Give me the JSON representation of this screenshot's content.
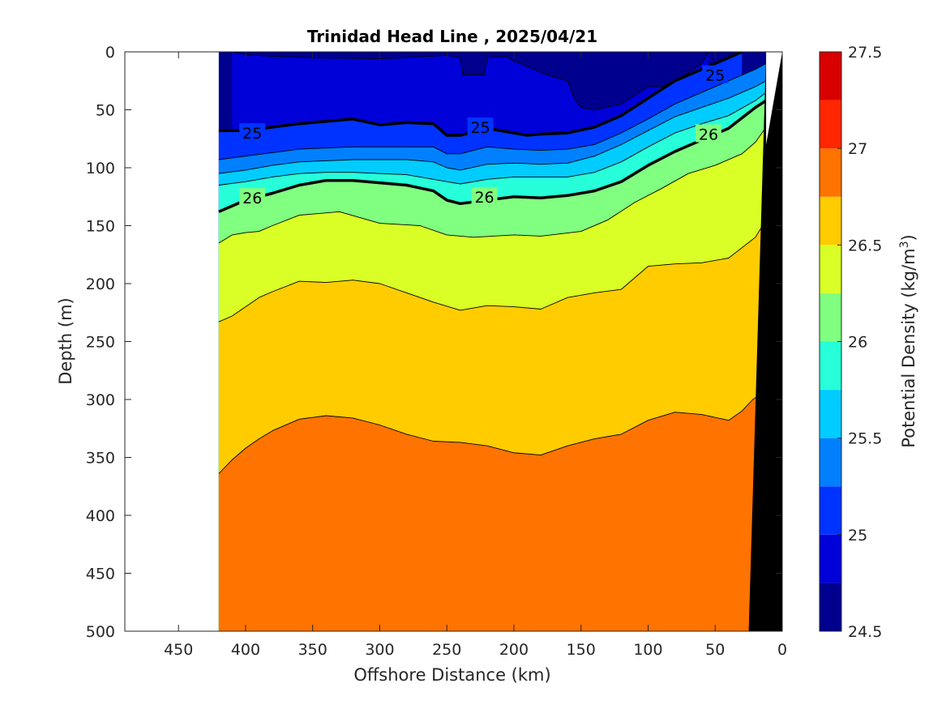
{
  "chart_data": {
    "type": "contour",
    "title": "Trinidad Head Line , 2025/04/21",
    "xlabel": "Offshore Distance (km)",
    "ylabel": "Depth (m)",
    "colorbar_label": "Potential Density (kg/m^3)",
    "colorbar_label_base": "Potential Density (kg/m",
    "colorbar_label_sup": "3",
    "colorbar_label_close": ")",
    "xlim": [
      490,
      0
    ],
    "ylim": [
      0,
      500
    ],
    "x_reversed": true,
    "y_reversed": true,
    "xticks": [
      450,
      400,
      350,
      300,
      250,
      200,
      150,
      100,
      50,
      0
    ],
    "yticks": [
      0,
      50,
      100,
      150,
      200,
      250,
      300,
      350,
      400,
      450,
      500
    ],
    "colorbar_ticks": [
      24.5,
      25,
      25.5,
      26,
      26.5,
      27,
      27.5
    ],
    "colorbar_tick_labels": [
      "24.5",
      "25",
      "25.5",
      "26",
      "26.5",
      "27",
      "27.5"
    ],
    "levels": [
      24.5,
      24.75,
      25.0,
      25.25,
      25.5,
      25.75,
      26.0,
      26.25,
      26.5,
      26.75,
      27.0,
      27.25,
      27.5
    ],
    "level_colors": [
      "#00008f",
      "#0000d9",
      "#0033ff",
      "#0080ff",
      "#00ccff",
      "#26ffd9",
      "#80ff80",
      "#d9ff26",
      "#ffcc00",
      "#ff7300",
      "#ff2600",
      "#d90000"
    ],
    "data_x_range": [
      420,
      12
    ],
    "contours": [
      {
        "level": 24.75,
        "bold": false,
        "points": [
          [
            410,
            0
          ],
          [
            395,
            3
          ],
          [
            350,
            5
          ],
          [
            300,
            6
          ],
          [
            250,
            3
          ],
          [
            240,
            5
          ],
          [
            238,
            20
          ],
          [
            222,
            20
          ],
          [
            220,
            5
          ],
          [
            205,
            4
          ],
          [
            200,
            8
          ],
          [
            195,
            10
          ],
          [
            185,
            15
          ],
          [
            175,
            20
          ],
          [
            160,
            25
          ],
          [
            155,
            40
          ],
          [
            150,
            48
          ],
          [
            140,
            50
          ],
          [
            120,
            45
          ],
          [
            100,
            30
          ],
          [
            90,
            30
          ],
          [
            80,
            25
          ],
          [
            70,
            18
          ],
          [
            60,
            10
          ],
          [
            55,
            0
          ]
        ]
      },
      {
        "level": 25.0,
        "bold": true,
        "label": "25",
        "label_points": [
          [
            395,
            70
          ],
          [
            225,
            65
          ],
          [
            50,
            20
          ]
        ],
        "points": [
          [
            420,
            68
          ],
          [
            400,
            68
          ],
          [
            380,
            65
          ],
          [
            360,
            62
          ],
          [
            340,
            60
          ],
          [
            320,
            58
          ],
          [
            300,
            63
          ],
          [
            280,
            61
          ],
          [
            260,
            62
          ],
          [
            250,
            72
          ],
          [
            240,
            72
          ],
          [
            220,
            66
          ],
          [
            200,
            70
          ],
          [
            190,
            72
          ],
          [
            180,
            71
          ],
          [
            160,
            70
          ],
          [
            140,
            65
          ],
          [
            120,
            55
          ],
          [
            100,
            40
          ],
          [
            80,
            25
          ],
          [
            60,
            15
          ],
          [
            40,
            5
          ],
          [
            30,
            0
          ]
        ]
      },
      {
        "level": 25.25,
        "bold": false,
        "points": [
          [
            420,
            93
          ],
          [
            400,
            90
          ],
          [
            380,
            87
          ],
          [
            360,
            84
          ],
          [
            340,
            83
          ],
          [
            320,
            82
          ],
          [
            300,
            82
          ],
          [
            280,
            82
          ],
          [
            260,
            82
          ],
          [
            250,
            88
          ],
          [
            240,
            88
          ],
          [
            220,
            82
          ],
          [
            200,
            84
          ],
          [
            180,
            85
          ],
          [
            160,
            84
          ],
          [
            140,
            80
          ],
          [
            120,
            70
          ],
          [
            100,
            58
          ],
          [
            80,
            45
          ],
          [
            60,
            35
          ],
          [
            40,
            25
          ],
          [
            20,
            15
          ],
          [
            12,
            10
          ]
        ]
      },
      {
        "level": 25.5,
        "bold": false,
        "points": [
          [
            420,
            105
          ],
          [
            400,
            102
          ],
          [
            380,
            98
          ],
          [
            360,
            95
          ],
          [
            340,
            94
          ],
          [
            320,
            93
          ],
          [
            300,
            93
          ],
          [
            280,
            93
          ],
          [
            260,
            95
          ],
          [
            250,
            100
          ],
          [
            240,
            102
          ],
          [
            220,
            97
          ],
          [
            200,
            96
          ],
          [
            180,
            97
          ],
          [
            160,
            96
          ],
          [
            140,
            90
          ],
          [
            120,
            80
          ],
          [
            100,
            68
          ],
          [
            80,
            56
          ],
          [
            60,
            48
          ],
          [
            40,
            40
          ],
          [
            20,
            30
          ],
          [
            12,
            25
          ]
        ]
      },
      {
        "level": 25.75,
        "bold": false,
        "points": [
          [
            420,
            115
          ],
          [
            400,
            112
          ],
          [
            380,
            108
          ],
          [
            360,
            105
          ],
          [
            340,
            104
          ],
          [
            320,
            104
          ],
          [
            300,
            105
          ],
          [
            280,
            106
          ],
          [
            260,
            110
          ],
          [
            250,
            112
          ],
          [
            240,
            114
          ],
          [
            220,
            110
          ],
          [
            200,
            108
          ],
          [
            180,
            108
          ],
          [
            160,
            108
          ],
          [
            140,
            104
          ],
          [
            120,
            95
          ],
          [
            100,
            82
          ],
          [
            80,
            70
          ],
          [
            60,
            62
          ],
          [
            40,
            55
          ],
          [
            20,
            42
          ],
          [
            12,
            35
          ]
        ]
      },
      {
        "level": 26.0,
        "bold": true,
        "label": "26",
        "label_points": [
          [
            395,
            126
          ],
          [
            222,
            125
          ],
          [
            55,
            71
          ]
        ],
        "points": [
          [
            420,
            138
          ],
          [
            400,
            128
          ],
          [
            380,
            122
          ],
          [
            360,
            115
          ],
          [
            340,
            111
          ],
          [
            320,
            111
          ],
          [
            300,
            113
          ],
          [
            280,
            115
          ],
          [
            260,
            120
          ],
          [
            250,
            128
          ],
          [
            240,
            131
          ],
          [
            220,
            128
          ],
          [
            200,
            125
          ],
          [
            180,
            126
          ],
          [
            160,
            124
          ],
          [
            140,
            120
          ],
          [
            120,
            112
          ],
          [
            100,
            98
          ],
          [
            80,
            86
          ],
          [
            60,
            76
          ],
          [
            40,
            66
          ],
          [
            20,
            48
          ],
          [
            12,
            42
          ]
        ]
      },
      {
        "level": 26.25,
        "bold": false,
        "points": [
          [
            420,
            165
          ],
          [
            410,
            158
          ],
          [
            400,
            156
          ],
          [
            390,
            155
          ],
          [
            380,
            150
          ],
          [
            360,
            141
          ],
          [
            330,
            138
          ],
          [
            300,
            148
          ],
          [
            270,
            150
          ],
          [
            250,
            158
          ],
          [
            230,
            160
          ],
          [
            200,
            158
          ],
          [
            180,
            159
          ],
          [
            150,
            155
          ],
          [
            130,
            145
          ],
          [
            110,
            130
          ],
          [
            90,
            118
          ],
          [
            70,
            105
          ],
          [
            50,
            98
          ],
          [
            30,
            88
          ],
          [
            20,
            78
          ],
          [
            12,
            65
          ]
        ]
      },
      {
        "level": 26.5,
        "bold": false,
        "points": [
          [
            420,
            233
          ],
          [
            410,
            228
          ],
          [
            400,
            220
          ],
          [
            390,
            212
          ],
          [
            380,
            207
          ],
          [
            360,
            198
          ],
          [
            340,
            199
          ],
          [
            320,
            197
          ],
          [
            300,
            200
          ],
          [
            280,
            208
          ],
          [
            260,
            216
          ],
          [
            240,
            223
          ],
          [
            220,
            219
          ],
          [
            200,
            220
          ],
          [
            180,
            222
          ],
          [
            160,
            212
          ],
          [
            140,
            208
          ],
          [
            120,
            205
          ],
          [
            100,
            185
          ],
          [
            80,
            183
          ],
          [
            60,
            182
          ],
          [
            40,
            178
          ],
          [
            20,
            160
          ],
          [
            12,
            145
          ]
        ]
      },
      {
        "level": 26.75,
        "bold": false,
        "points": [
          [
            420,
            364
          ],
          [
            410,
            352
          ],
          [
            400,
            342
          ],
          [
            390,
            334
          ],
          [
            380,
            327
          ],
          [
            360,
            317
          ],
          [
            340,
            314
          ],
          [
            320,
            316
          ],
          [
            300,
            322
          ],
          [
            280,
            330
          ],
          [
            260,
            336
          ],
          [
            240,
            337
          ],
          [
            220,
            340
          ],
          [
            200,
            346
          ],
          [
            180,
            348
          ],
          [
            160,
            340
          ],
          [
            140,
            334
          ],
          [
            120,
            330
          ],
          [
            100,
            318
          ],
          [
            80,
            311
          ],
          [
            60,
            313
          ],
          [
            40,
            318
          ],
          [
            30,
            310
          ],
          [
            22,
            300
          ],
          [
            15,
            295
          ]
        ]
      }
    ],
    "bathymetry_polygon": [
      [
        12,
        0
      ],
      [
        25,
        500
      ],
      [
        0,
        500
      ],
      [
        0,
        0
      ]
    ]
  }
}
